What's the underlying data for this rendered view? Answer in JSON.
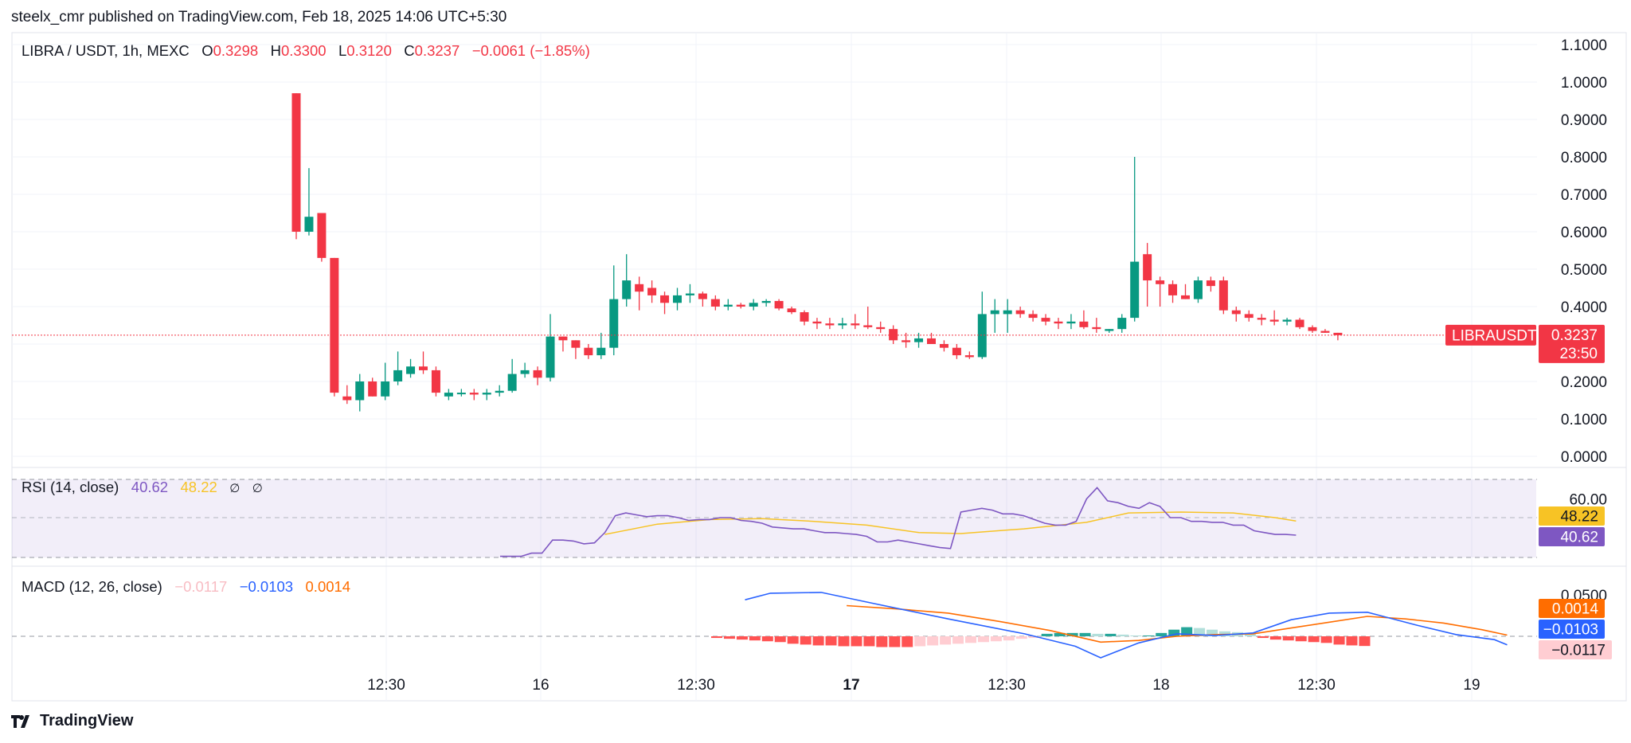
{
  "header": {
    "published": "steelx_cmr published on TradingView.com, Feb 18, 2025 14:06 UTC+5:30"
  },
  "legend": {
    "symbol": "LIBRA / USDT, 1h, MEXC",
    "o_label": "O",
    "o": "0.3298",
    "h_label": "H",
    "h": "0.3300",
    "l_label": "L",
    "l": "0.3120",
    "c_label": "C",
    "c": "0.3237",
    "change": "−0.0061 (−1.85%)"
  },
  "rsi_legend": {
    "title": "RSI (14, close)",
    "rsi": "40.62",
    "ma": "48.22",
    "icon1": "∅",
    "icon2": "∅"
  },
  "macd_legend": {
    "title": "MACD (12, 26, close)",
    "hist": "−0.0117",
    "macd": "−0.0103",
    "signal": "0.0014"
  },
  "footer": {
    "brand": "TradingView"
  },
  "colors": {
    "up": "#089981",
    "down": "#f23645",
    "rsi": "#7e57c2",
    "rsi_ma": "#f7c325",
    "macd": "#2962ff",
    "signal": "#ff6d00",
    "hist_up_strong": "#26a69a",
    "hist_up_weak": "#b2dfdb",
    "hist_down_strong": "#ff5252",
    "hist_down_weak": "#ffcdd2"
  },
  "chart_data": {
    "type": "candlestick",
    "price_axis": {
      "ticks": [
        "1.1000",
        "1.0000",
        "0.9000",
        "0.8000",
        "0.7000",
        "0.6000",
        "0.5000",
        "0.4000",
        "0.2000",
        "0.1000",
        "0.0000"
      ],
      "range": [
        0,
        1.1
      ]
    },
    "last_price": {
      "symbol_label": "LIBRAUSDT",
      "price": "0.3237",
      "countdown": "23:50",
      "value": 0.3237
    },
    "time_axis": {
      "ticks": [
        "12:30",
        "16",
        "12:30",
        "17",
        "12:30",
        "18",
        "12:30",
        "19"
      ],
      "bold": [
        "17"
      ]
    },
    "candles": [
      [
        0.97,
        0.97,
        0.58,
        0.6
      ],
      [
        0.6,
        0.77,
        0.59,
        0.64
      ],
      [
        0.65,
        0.65,
        0.52,
        0.53
      ],
      [
        0.53,
        0.53,
        0.16,
        0.17
      ],
      [
        0.16,
        0.19,
        0.14,
        0.15
      ],
      [
        0.15,
        0.22,
        0.12,
        0.2
      ],
      [
        0.2,
        0.21,
        0.16,
        0.16
      ],
      [
        0.16,
        0.25,
        0.15,
        0.2
      ],
      [
        0.2,
        0.28,
        0.19,
        0.23
      ],
      [
        0.22,
        0.26,
        0.21,
        0.24
      ],
      [
        0.24,
        0.28,
        0.22,
        0.23
      ],
      [
        0.23,
        0.24,
        0.16,
        0.17
      ],
      [
        0.16,
        0.18,
        0.15,
        0.17
      ],
      [
        0.17,
        0.18,
        0.16,
        0.17
      ],
      [
        0.17,
        0.18,
        0.15,
        0.165
      ],
      [
        0.165,
        0.18,
        0.15,
        0.17
      ],
      [
        0.17,
        0.19,
        0.16,
        0.175
      ],
      [
        0.175,
        0.26,
        0.17,
        0.22
      ],
      [
        0.22,
        0.25,
        0.21,
        0.23
      ],
      [
        0.23,
        0.24,
        0.19,
        0.21
      ],
      [
        0.21,
        0.38,
        0.2,
        0.32
      ],
      [
        0.32,
        0.32,
        0.28,
        0.31
      ],
      [
        0.31,
        0.31,
        0.26,
        0.29
      ],
      [
        0.29,
        0.3,
        0.26,
        0.27
      ],
      [
        0.27,
        0.33,
        0.26,
        0.29
      ],
      [
        0.29,
        0.51,
        0.27,
        0.42
      ],
      [
        0.42,
        0.54,
        0.4,
        0.47
      ],
      [
        0.46,
        0.48,
        0.39,
        0.44
      ],
      [
        0.45,
        0.47,
        0.41,
        0.43
      ],
      [
        0.43,
        0.44,
        0.38,
        0.41
      ],
      [
        0.41,
        0.45,
        0.39,
        0.43
      ],
      [
        0.43,
        0.46,
        0.41,
        0.435
      ],
      [
        0.435,
        0.44,
        0.4,
        0.42
      ],
      [
        0.42,
        0.43,
        0.39,
        0.4
      ],
      [
        0.4,
        0.42,
        0.39,
        0.405
      ],
      [
        0.405,
        0.41,
        0.395,
        0.4
      ],
      [
        0.4,
        0.42,
        0.39,
        0.41
      ],
      [
        0.41,
        0.42,
        0.4,
        0.415
      ],
      [
        0.415,
        0.42,
        0.39,
        0.395
      ],
      [
        0.395,
        0.4,
        0.38,
        0.385
      ],
      [
        0.385,
        0.39,
        0.35,
        0.36
      ],
      [
        0.36,
        0.37,
        0.34,
        0.355
      ],
      [
        0.355,
        0.37,
        0.34,
        0.35
      ],
      [
        0.35,
        0.37,
        0.34,
        0.355
      ],
      [
        0.355,
        0.38,
        0.34,
        0.35
      ],
      [
        0.35,
        0.4,
        0.34,
        0.345
      ],
      [
        0.345,
        0.36,
        0.33,
        0.34
      ],
      [
        0.34,
        0.35,
        0.3,
        0.31
      ],
      [
        0.31,
        0.33,
        0.29,
        0.305
      ],
      [
        0.305,
        0.33,
        0.29,
        0.315
      ],
      [
        0.315,
        0.33,
        0.3,
        0.3
      ],
      [
        0.3,
        0.31,
        0.28,
        0.29
      ],
      [
        0.29,
        0.3,
        0.26,
        0.27
      ],
      [
        0.27,
        0.28,
        0.26,
        0.265
      ],
      [
        0.265,
        0.44,
        0.26,
        0.38
      ],
      [
        0.38,
        0.42,
        0.33,
        0.39
      ],
      [
        0.38,
        0.42,
        0.33,
        0.39
      ],
      [
        0.39,
        0.4,
        0.37,
        0.38
      ],
      [
        0.38,
        0.39,
        0.36,
        0.37
      ],
      [
        0.37,
        0.38,
        0.35,
        0.36
      ],
      [
        0.36,
        0.37,
        0.34,
        0.355
      ],
      [
        0.355,
        0.38,
        0.34,
        0.36
      ],
      [
        0.36,
        0.39,
        0.34,
        0.345
      ],
      [
        0.345,
        0.37,
        0.33,
        0.34
      ],
      [
        0.335,
        0.34,
        0.33,
        0.34
      ],
      [
        0.34,
        0.38,
        0.33,
        0.37
      ],
      [
        0.37,
        0.8,
        0.36,
        0.52
      ],
      [
        0.54,
        0.57,
        0.4,
        0.47
      ],
      [
        0.47,
        0.48,
        0.4,
        0.46
      ],
      [
        0.46,
        0.47,
        0.41,
        0.43
      ],
      [
        0.43,
        0.46,
        0.42,
        0.42
      ],
      [
        0.42,
        0.48,
        0.41,
        0.47
      ],
      [
        0.47,
        0.48,
        0.44,
        0.455
      ],
      [
        0.47,
        0.48,
        0.38,
        0.39
      ],
      [
        0.39,
        0.4,
        0.36,
        0.38
      ],
      [
        0.38,
        0.39,
        0.36,
        0.37
      ],
      [
        0.37,
        0.38,
        0.35,
        0.365
      ],
      [
        0.365,
        0.39,
        0.35,
        0.36
      ],
      [
        0.36,
        0.37,
        0.35,
        0.365
      ],
      [
        0.365,
        0.37,
        0.34,
        0.345
      ],
      [
        0.345,
        0.35,
        0.33,
        0.335
      ],
      [
        0.335,
        0.34,
        0.33,
        0.33
      ],
      [
        0.33,
        0.33,
        0.31,
        0.3237
      ]
    ],
    "rsi": {
      "axis_ticks": [
        "60.00"
      ],
      "upper": 70,
      "lower": 30,
      "mid": 50,
      "range": [
        28,
        72
      ],
      "value": "40.62",
      "ma": "48.22",
      "series": [
        [
          0,
          29.3
        ],
        [
          2,
          29.3
        ],
        [
          3,
          31
        ],
        [
          4,
          31
        ],
        [
          5,
          38
        ],
        [
          6,
          38
        ],
        [
          7,
          37.5
        ],
        [
          8,
          36
        ],
        [
          9,
          36.5
        ],
        [
          10,
          42
        ],
        [
          11,
          51
        ],
        [
          12,
          52.5
        ],
        [
          13,
          51.5
        ],
        [
          14,
          50.5
        ],
        [
          15,
          51
        ],
        [
          16,
          51
        ],
        [
          17,
          50
        ],
        [
          18,
          48.5
        ],
        [
          19,
          49
        ],
        [
          20,
          49
        ],
        [
          21,
          50
        ],
        [
          22,
          50
        ],
        [
          23,
          48.5
        ],
        [
          24,
          48
        ],
        [
          25,
          47
        ],
        [
          26,
          45
        ],
        [
          27,
          44.5
        ],
        [
          28,
          44
        ],
        [
          29,
          44
        ],
        [
          30,
          43
        ],
        [
          31,
          42
        ],
        [
          32,
          42
        ],
        [
          33,
          41.5
        ],
        [
          34,
          41
        ],
        [
          35,
          40
        ],
        [
          36,
          37
        ],
        [
          37,
          37
        ],
        [
          38,
          38
        ],
        [
          39,
          37
        ],
        [
          40,
          36
        ],
        [
          41,
          35
        ],
        [
          42,
          34
        ],
        [
          43,
          33.5
        ],
        [
          44,
          53
        ],
        [
          45,
          54
        ],
        [
          46,
          55
        ],
        [
          47,
          54
        ],
        [
          48,
          52
        ],
        [
          49,
          52
        ],
        [
          50,
          51
        ],
        [
          51,
          49
        ],
        [
          52,
          47
        ],
        [
          53,
          46
        ],
        [
          54,
          46
        ],
        [
          55,
          48
        ],
        [
          56,
          60
        ],
        [
          57,
          66
        ],
        [
          58,
          59
        ],
        [
          59,
          58
        ],
        [
          60,
          56
        ],
        [
          61,
          55
        ],
        [
          62,
          58
        ],
        [
          63,
          56
        ],
        [
          64,
          50
        ],
        [
          65,
          50
        ],
        [
          66,
          48
        ],
        [
          67,
          48
        ],
        [
          68,
          47.5
        ],
        [
          69,
          47.5
        ],
        [
          70,
          46
        ],
        [
          71,
          46
        ],
        [
          72,
          43
        ],
        [
          73,
          42
        ],
        [
          74,
          41
        ],
        [
          75,
          41
        ],
        [
          76,
          40.62
        ]
      ],
      "ma_series": [
        [
          10,
          41
        ],
        [
          15,
          46.5
        ],
        [
          20,
          49
        ],
        [
          25,
          49.5
        ],
        [
          30,
          48
        ],
        [
          35,
          46
        ],
        [
          40,
          42
        ],
        [
          44,
          41.5
        ],
        [
          50,
          44
        ],
        [
          56,
          47.5
        ],
        [
          60,
          52.5
        ],
        [
          65,
          53
        ],
        [
          70,
          52.5
        ],
        [
          74,
          50
        ],
        [
          76,
          48.22
        ]
      ]
    },
    "macd": {
      "axis_ticks": [
        "0.0500"
      ],
      "range": [
        -0.045,
        0.065
      ],
      "macd_value": "−0.0103",
      "signal_value": "0.0014",
      "hist_value": "−0.0117",
      "macd_series": [
        [
          10,
          0.044
        ],
        [
          12,
          0.052
        ],
        [
          16,
          0.053
        ],
        [
          20,
          0.04
        ],
        [
          26,
          0.021
        ],
        [
          32,
          0.003
        ],
        [
          36,
          -0.012
        ],
        [
          38,
          -0.026
        ],
        [
          41,
          -0.008
        ],
        [
          44,
          0.003
        ],
        [
          47,
          0.001
        ],
        [
          50,
          0.004
        ],
        [
          53,
          0.02
        ],
        [
          56,
          0.028
        ],
        [
          59,
          0.029
        ],
        [
          60,
          0.025
        ],
        [
          63,
          0.013
        ],
        [
          66,
          0.002
        ],
        [
          69,
          -0.004
        ],
        [
          70,
          -0.0103
        ]
      ],
      "signal_series": [
        [
          18,
          0.037
        ],
        [
          22,
          0.033
        ],
        [
          26,
          0.028
        ],
        [
          30,
          0.018
        ],
        [
          34,
          0.007
        ],
        [
          38,
          -0.007
        ],
        [
          41,
          -0.005
        ],
        [
          44,
          0.0
        ],
        [
          47,
          0.002
        ],
        [
          50,
          0.003
        ],
        [
          53,
          0.01
        ],
        [
          56,
          0.017
        ],
        [
          59,
          0.024
        ],
        [
          62,
          0.021
        ],
        [
          65,
          0.016
        ],
        [
          68,
          0.008
        ],
        [
          70,
          0.0014
        ]
      ],
      "histogram": [
        -0.002,
        -0.003,
        -0.004,
        -0.005,
        -0.006,
        -0.007,
        -0.009,
        -0.01,
        -0.011,
        -0.011,
        -0.012,
        -0.012,
        -0.012,
        -0.013,
        -0.013,
        -0.013,
        -0.012,
        -0.011,
        -0.01,
        -0.009,
        -0.008,
        -0.007,
        -0.006,
        -0.005,
        -0.003,
        -0.002,
        0.003,
        0.004,
        0.004,
        0.004,
        0.003,
        0.003,
        0.002,
        0.001,
        0.001,
        0.004,
        0.008,
        0.011,
        0.01,
        0.008,
        0.006,
        0.005,
        0.003,
        -0.002,
        -0.004,
        -0.005,
        -0.006,
        -0.007,
        -0.008,
        -0.01,
        -0.011,
        -0.0117
      ]
    }
  }
}
